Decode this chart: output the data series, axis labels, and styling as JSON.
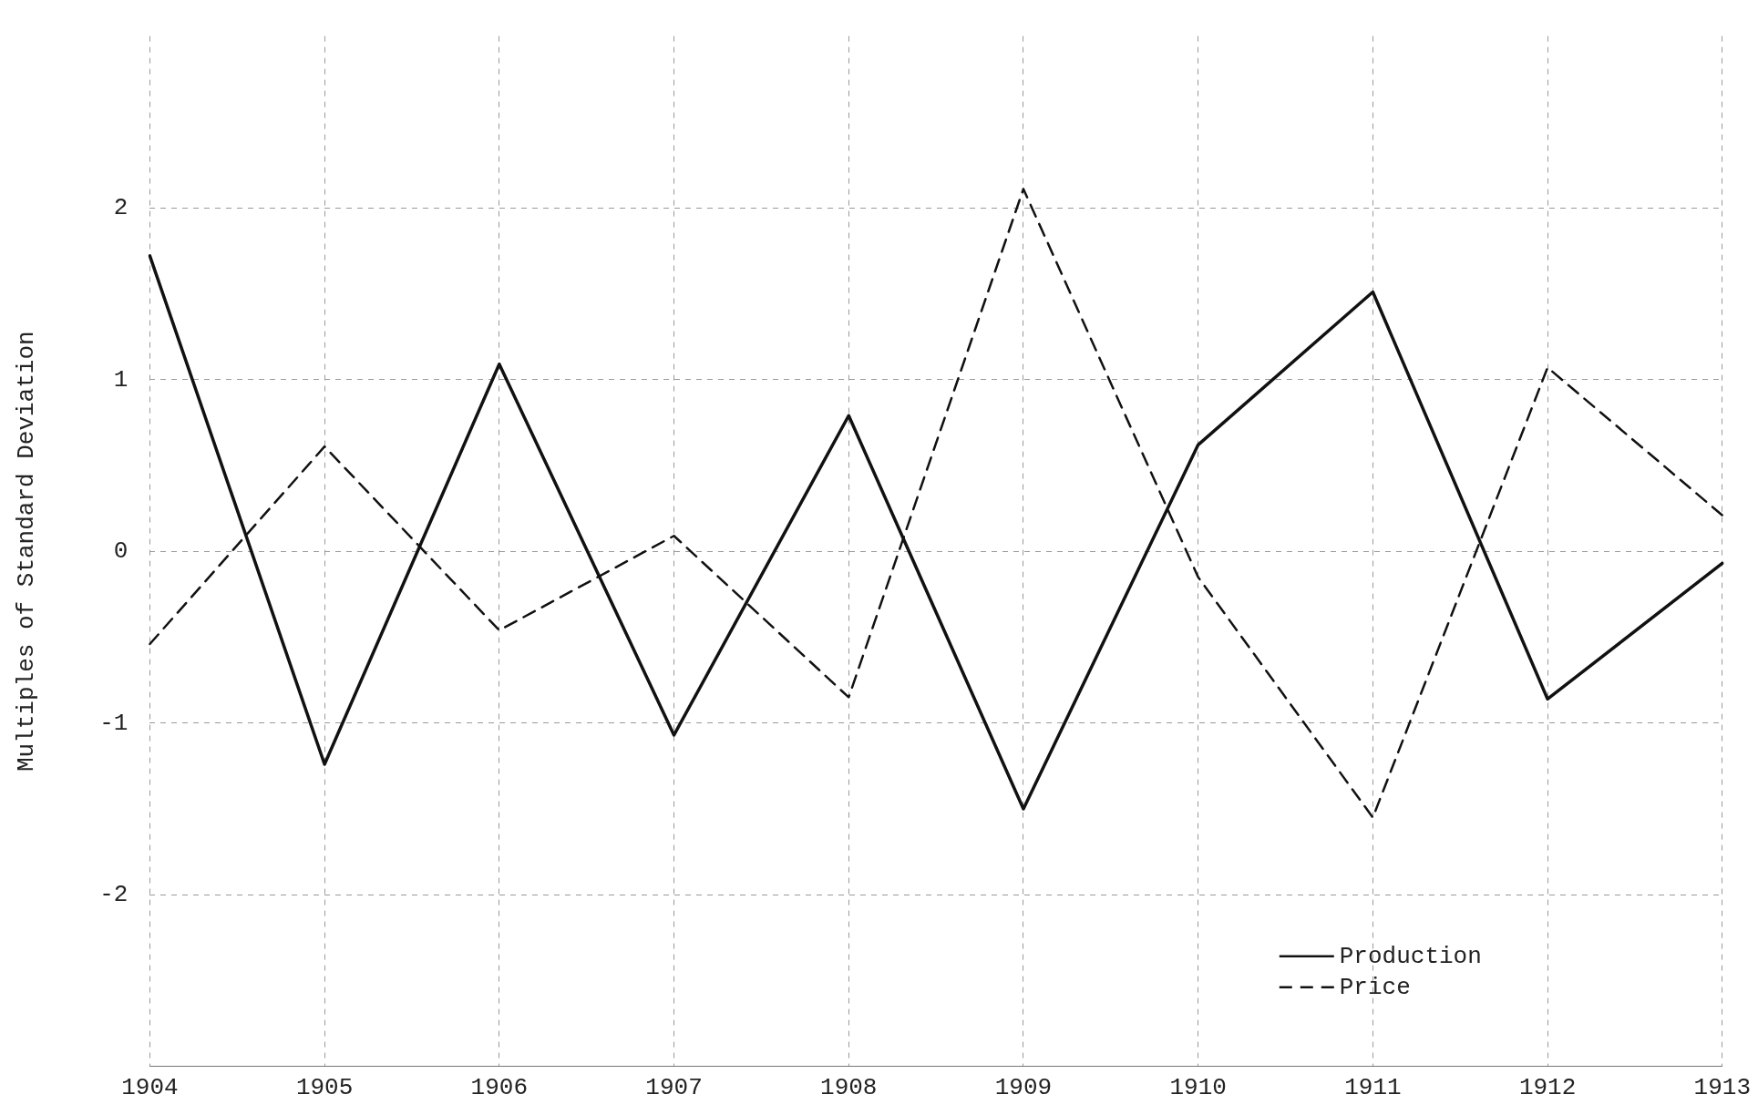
{
  "chart_data": {
    "type": "line",
    "ylabel": "Multiples of Standard Deviation",
    "categories": [
      "1904",
      "1905",
      "1906",
      "1907",
      "1908",
      "1909",
      "1910",
      "1911",
      "1912",
      "1913"
    ],
    "series": [
      {
        "name": "Production",
        "color": "#111111",
        "line_style": "solid",
        "values": [
          1.72,
          -1.24,
          1.09,
          -1.07,
          0.79,
          -1.5,
          0.62,
          1.51,
          -0.86,
          -0.07
        ]
      },
      {
        "name": "Price",
        "color": "#111111",
        "line_style": "dashed",
        "values": [
          -0.54,
          0.61,
          -0.46,
          0.09,
          -0.85,
          2.11,
          -0.15,
          -1.55,
          1.07,
          0.21
        ]
      }
    ],
    "ylim": [
      -3,
      3
    ],
    "yticks": [
      -2,
      -1,
      0,
      1,
      2
    ],
    "grid": true,
    "legend": "bottom right",
    "marker": "none"
  }
}
